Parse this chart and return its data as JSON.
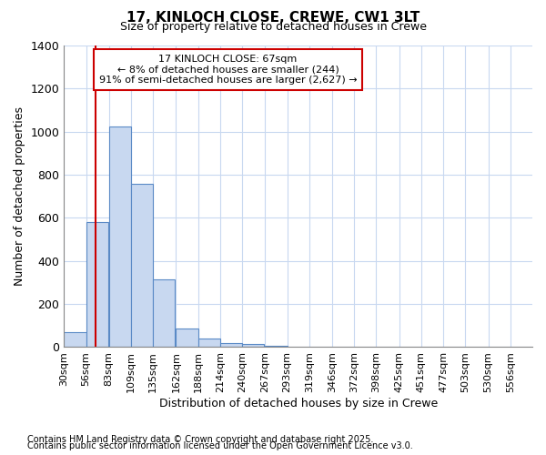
{
  "title1": "17, KINLOCH CLOSE, CREWE, CW1 3LT",
  "title2": "Size of property relative to detached houses in Crewe",
  "xlabel": "Distribution of detached houses by size in Crewe",
  "ylabel": "Number of detached properties",
  "bin_labels": [
    "30sqm",
    "56sqm",
    "83sqm",
    "109sqm",
    "135sqm",
    "162sqm",
    "188sqm",
    "214sqm",
    "240sqm",
    "267sqm",
    "293sqm",
    "319sqm",
    "346sqm",
    "372sqm",
    "398sqm",
    "425sqm",
    "451sqm",
    "477sqm",
    "503sqm",
    "530sqm",
    "556sqm"
  ],
  "bar_heights": [
    70,
    580,
    1025,
    760,
    315,
    85,
    40,
    20,
    13,
    5,
    0,
    0,
    0,
    0,
    0,
    0,
    0,
    0,
    0,
    0,
    0
  ],
  "bar_color": "#c8d8f0",
  "bar_edge_color": "#5a8ac6",
  "property_line_x": 67,
  "property_line_color": "#cc0000",
  "annotation_text": "17 KINLOCH CLOSE: 67sqm\n← 8% of detached houses are smaller (244)\n91% of semi-detached houses are larger (2,627) →",
  "annotation_box_color": "#cc0000",
  "ylim": [
    0,
    1400
  ],
  "yticks": [
    0,
    200,
    400,
    600,
    800,
    1000,
    1200,
    1400
  ],
  "footnote1": "Contains HM Land Registry data © Crown copyright and database right 2025.",
  "footnote2": "Contains public sector information licensed under the Open Government Licence v3.0.",
  "bg_color": "#ffffff",
  "plot_bg_color": "#ffffff",
  "grid_color": "#c8d8f0"
}
